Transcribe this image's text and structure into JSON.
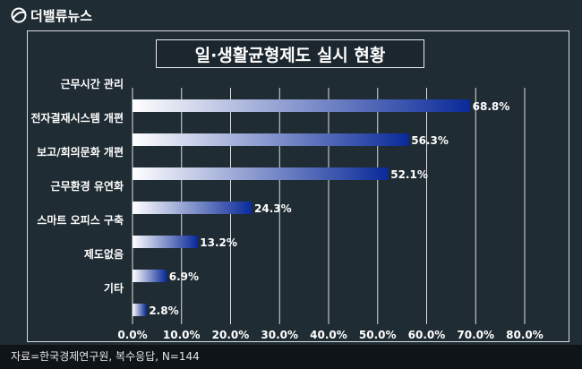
{
  "brand": {
    "name": "더밸류뉴스",
    "icon": "globe-logo-icon"
  },
  "colors": {
    "background": "#1f2c33",
    "bar_start": "#ffffff",
    "bar_end": "#0a2a9a",
    "grid": "#ffffff",
    "text": "#ffffff"
  },
  "chart_data": {
    "type": "bar",
    "orientation": "horizontal",
    "title": "일·생활균형제도 실시 현황",
    "categories": [
      "근무시간 관리",
      "전자결재시스템 개편",
      "보고/회의문화 개편",
      "근무환경 유연화",
      "스마트 오피스 구축",
      "제도없음",
      "기타"
    ],
    "values": [
      68.8,
      56.3,
      52.1,
      24.3,
      13.2,
      6.9,
      2.8
    ],
    "value_labels": [
      "68.8%",
      "56.3%",
      "52.1%",
      "24.3%",
      "13.2%",
      "6.9%",
      "2.8%"
    ],
    "xlim": [
      0,
      80
    ],
    "x_ticks": [
      "0.0%",
      "10.0%",
      "20.0%",
      "30.0%",
      "40.0%",
      "50.0%",
      "60.0%",
      "70.0%",
      "80.0%"
    ],
    "grid": true
  },
  "source_note": "자료=한국경제연구원, 복수응답, N=144"
}
